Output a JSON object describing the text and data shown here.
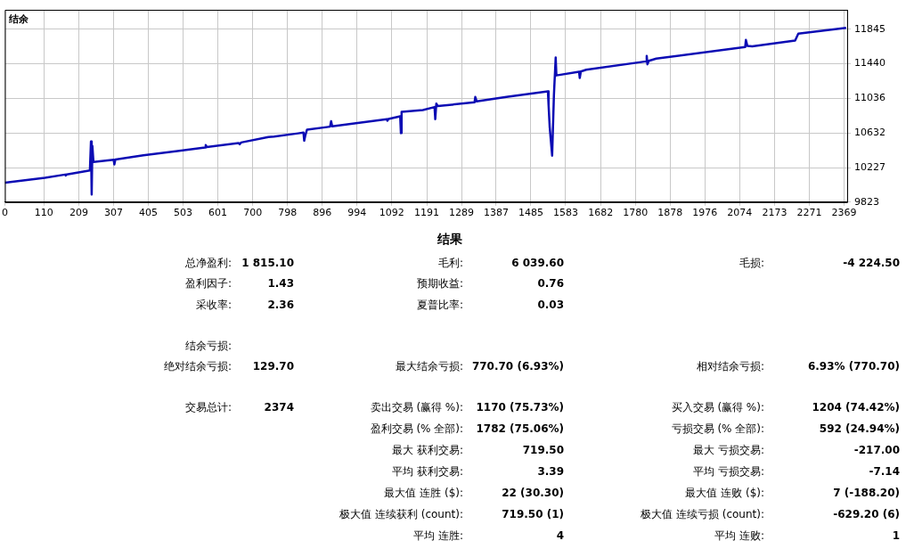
{
  "chart_data": [
    {
      "type": "line",
      "title": "结余",
      "xlim": [
        0,
        2378
      ],
      "xticks": [
        0,
        110,
        209,
        307,
        405,
        503,
        601,
        700,
        798,
        896,
        994,
        1092,
        1191,
        1289,
        1387,
        1485,
        1583,
        1682,
        1780,
        1878,
        1976,
        2074,
        2173,
        2271,
        2369
      ],
      "ylim": [
        9823,
        12071
      ],
      "yticks": [
        9823,
        10227,
        10632,
        11036,
        11440,
        11845
      ],
      "grid": true,
      "series": [
        {
          "color": "#0c0cb4",
          "x": [
            0,
            113,
            170,
            172,
            175,
            240,
            243,
            245,
            247,
            250,
            307,
            309,
            312,
            391,
            492,
            565,
            567,
            570,
            660,
            663,
            667,
            744,
            760,
            828,
            843,
            845,
            848,
            853,
            918,
            921,
            924,
            996,
            1078,
            1080,
            1083,
            1116,
            1118,
            1120,
            1180,
            1213,
            1215,
            1218,
            1222,
            1326,
            1328,
            1332,
            1416,
            1533,
            1535,
            1538,
            1545,
            1550,
            1555,
            1557,
            1621,
            1623,
            1626,
            1641,
            1810,
            1812,
            1814,
            1818,
            1839,
            2090,
            2092,
            2096,
            2110,
            2231,
            2240,
            2375
          ],
          "values": [
            10049,
            10108,
            10145,
            10135,
            10147,
            10194,
            10533,
            9911,
            10480,
            10292,
            10319,
            10264,
            10322,
            10371,
            10422,
            10462,
            10489,
            10466,
            10514,
            10500,
            10520,
            10585,
            10590,
            10627,
            10635,
            10541,
            10600,
            10671,
            10705,
            10769,
            10710,
            10748,
            10792,
            10775,
            10795,
            10826,
            10630,
            10879,
            10900,
            10934,
            10793,
            10975,
            10945,
            10990,
            11052,
            11000,
            11052,
            11118,
            10952,
            10706,
            10366,
            11071,
            11514,
            11304,
            11347,
            11274,
            11350,
            11370,
            11468,
            11533,
            11434,
            11475,
            11500,
            11635,
            11719,
            11650,
            11644,
            11711,
            11792,
            11860
          ]
        }
      ]
    },
    {
      "type": "other",
      "title": "结果",
      "annotations": [
        "总净盈利:",
        "1 815.10",
        "毛利:",
        "6 039.60",
        "毛损:",
        "-4 224.50",
        "盈利因子:",
        "1.43",
        "预期收益:",
        "0.76",
        "采收率:",
        "2.36",
        "夏普比率:",
        "0.03",
        "结余亏损:",
        "绝对结余亏损:",
        "129.70",
        "最大结余亏损:",
        "770.70 (6.93%)",
        "相对结余亏损:",
        "6.93% (770.70)",
        "交易总计:",
        "2374",
        "卖出交易 (赢得 %):",
        "1170 (75.73%)",
        "买入交易 (赢得 %):",
        "1204 (74.42%)",
        "盈利交易 (% 全部):",
        "1782 (75.06%)",
        "亏损交易 (% 全部):",
        "592 (24.94%)",
        "最大 获利交易:",
        "719.50",
        "最大 亏损交易:",
        "-217.00",
        "平均 获利交易:",
        "3.39",
        "平均 亏损交易:",
        "-7.14",
        "最大值 连胜 ($):",
        "22 (30.30)",
        "最大值 连败 ($):",
        "7 (-188.20)",
        "极大值 连续获利 (count):",
        "719.50 (1)",
        "极大值 连续亏损 (count):",
        "-629.20 (6)",
        "平均 连胜:",
        "4",
        "平均 连败:",
        "1"
      ]
    }
  ]
}
